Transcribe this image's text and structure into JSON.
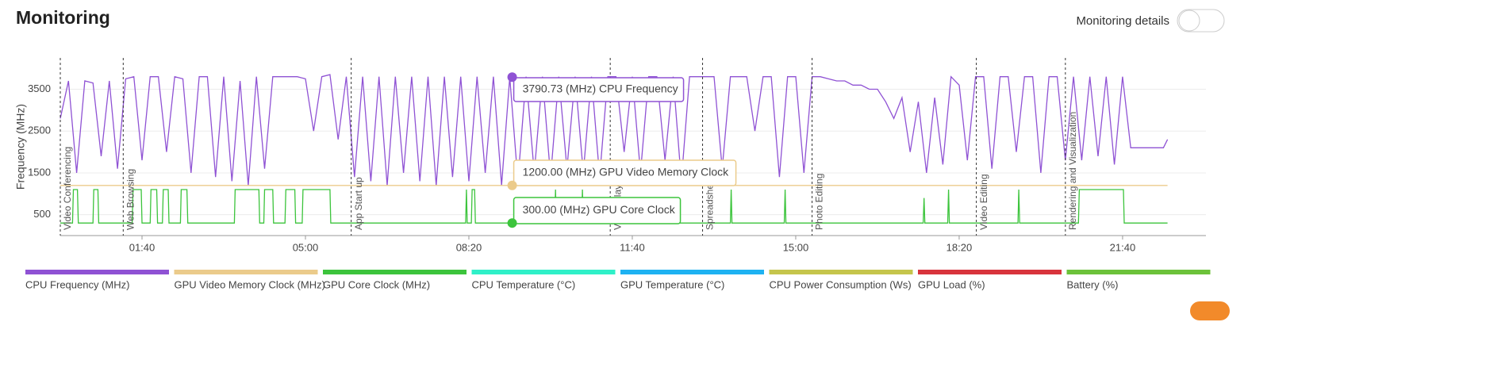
{
  "header": {
    "title": "Monitoring",
    "toggle_label": "Monitoring details"
  },
  "chart_data": {
    "type": "line",
    "y_label": "Frequency (MHz)",
    "xlim": [
      0,
      1402
    ],
    "ylim": [
      0,
      4250
    ],
    "xticks": [
      {
        "value": 100,
        "label": "01:40"
      },
      {
        "value": 300,
        "label": "05:00"
      },
      {
        "value": 500,
        "label": "08:20"
      },
      {
        "value": 700,
        "label": "11:40"
      },
      {
        "value": 900,
        "label": "15:00"
      },
      {
        "value": 1100,
        "label": "18:20"
      },
      {
        "value": 1300,
        "label": "21:40"
      }
    ],
    "yticks": [
      500,
      1500,
      2500,
      3500
    ],
    "grid": true,
    "series": [
      {
        "name": "CPU Frequency (MHz)",
        "color": "#8f52d4",
        "x": [
          0,
          10,
          20,
          30,
          40,
          50,
          60,
          70,
          80,
          90,
          100,
          110,
          120,
          130,
          140,
          150,
          160,
          170,
          180,
          190,
          200,
          210,
          220,
          230,
          240,
          250,
          260,
          270,
          280,
          290,
          300,
          310,
          320,
          330,
          340,
          350,
          360,
          370,
          380,
          390,
          400,
          410,
          420,
          430,
          440,
          450,
          460,
          470,
          480,
          490,
          500,
          510,
          520,
          530,
          540,
          550,
          560,
          570,
          580,
          590,
          600,
          610,
          620,
          630,
          640,
          650,
          660,
          670,
          680,
          690,
          700,
          710,
          720,
          730,
          740,
          750,
          760,
          770,
          780,
          790,
          800,
          810,
          820,
          830,
          840,
          850,
          860,
          870,
          880,
          890,
          900,
          910,
          920,
          930,
          940,
          950,
          960,
          970,
          980,
          990,
          1000,
          1010,
          1020,
          1030,
          1040,
          1050,
          1060,
          1070,
          1080,
          1090,
          1100,
          1110,
          1120,
          1130,
          1140,
          1150,
          1160,
          1170,
          1180,
          1190,
          1200,
          1210,
          1220,
          1230,
          1240,
          1250,
          1260,
          1270,
          1280,
          1290,
          1300,
          1310,
          1320,
          1330,
          1340,
          1350,
          1355
        ],
        "values": [
          2800,
          3700,
          1500,
          3700,
          3650,
          1900,
          3700,
          1600,
          3750,
          3800,
          1800,
          3800,
          3800,
          2000,
          3800,
          3750,
          1500,
          3800,
          3800,
          1400,
          3800,
          1300,
          3700,
          1200,
          3800,
          1600,
          3800,
          3800,
          3800,
          3800,
          3750,
          2500,
          3800,
          3850,
          2300,
          3800,
          1400,
          3800,
          1300,
          3800,
          1200,
          3800,
          1500,
          3800,
          1300,
          3800,
          1200,
          3800,
          1400,
          3800,
          1300,
          3800,
          1500,
          3800,
          1200,
          3790,
          1300,
          3800,
          1500,
          3800,
          1400,
          3800,
          1600,
          3800,
          1500,
          3800,
          1400,
          3800,
          3800,
          2000,
          3800,
          1500,
          3800,
          3800,
          1800,
          3800,
          1300,
          3800,
          3800,
          3800,
          3800,
          1600,
          3800,
          3800,
          3800,
          2500,
          3800,
          3800,
          1400,
          3800,
          3800,
          1500,
          3800,
          3800,
          3750,
          3700,
          3700,
          3600,
          3600,
          3500,
          3500,
          3200,
          2800,
          3300,
          2000,
          3200,
          1500,
          3300,
          1700,
          3800,
          3600,
          1800,
          3800,
          3800,
          1600,
          3800,
          3800,
          2000,
          3800,
          3800,
          1500,
          3800,
          3800,
          1800,
          3800,
          1800,
          3800,
          1900,
          3800,
          1700,
          3800,
          2100,
          2100,
          2100,
          2100,
          2100,
          2300
        ]
      },
      {
        "name": "GPU Video Memory Clock (MHz)",
        "color": "#ebcb8b",
        "x": [
          0,
          1355
        ],
        "values": [
          1200,
          1200
        ]
      },
      {
        "name": "GPU Core Clock (MHz)",
        "color": "#3cc43c",
        "x": [
          0,
          15,
          16,
          21,
          22,
          40,
          41,
          46,
          47,
          88,
          89,
          99,
          100,
          110,
          111,
          118,
          119,
          125,
          126,
          132,
          133,
          147,
          148,
          155,
          156,
          213,
          214,
          243,
          244,
          249,
          250,
          260,
          261,
          275,
          276,
          287,
          288,
          296,
          297,
          330,
          331,
          496,
          497,
          498,
          503,
          504,
          507,
          508,
          605,
          606,
          607,
          638,
          639,
          640,
          820,
          821,
          822,
          886,
          887,
          888,
          1056,
          1057,
          1058,
          1086,
          1087,
          1088,
          1172,
          1173,
          1174,
          1246,
          1247,
          1301,
          1302,
          1355
        ],
        "values": [
          300,
          300,
          1100,
          1100,
          300,
          300,
          1100,
          1100,
          300,
          300,
          1100,
          1100,
          300,
          300,
          1100,
          1100,
          300,
          300,
          1100,
          1100,
          300,
          300,
          1100,
          1100,
          300,
          300,
          1100,
          1100,
          300,
          300,
          1100,
          1100,
          300,
          300,
          1100,
          1100,
          300,
          300,
          1100,
          1100,
          300,
          300,
          1100,
          300,
          300,
          1100,
          1100,
          300,
          300,
          1100,
          300,
          300,
          1100,
          300,
          300,
          1100,
          300,
          300,
          1100,
          300,
          300,
          900,
          300,
          300,
          1100,
          300,
          300,
          1100,
          300,
          300,
          1100,
          1100,
          300,
          300
        ]
      }
    ],
    "inactive_series": [
      {
        "name": "CPU Temperature (°C)",
        "color": "#2ff0c8"
      },
      {
        "name": "GPU Temperature (°C)",
        "color": "#1eb2f2"
      },
      {
        "name": "CPU Power Consumption (Ws)",
        "color": "#c5c54c"
      },
      {
        "name": "GPU Load (%)",
        "color": "#d8343c"
      },
      {
        "name": "Battery (%)",
        "color": "#6cc23a"
      }
    ],
    "annotations": [
      {
        "x": 0,
        "label": "Video Conferencing"
      },
      {
        "x": 77,
        "label": "Web Browsing"
      },
      {
        "x": 356,
        "label": "App Start up"
      },
      {
        "x": 673,
        "label": "Video Playback"
      },
      {
        "x": 786,
        "label": "Spreadsheet"
      },
      {
        "x": 920,
        "label": "Photo Editing"
      },
      {
        "x": 1121,
        "label": "Video Editing"
      },
      {
        "x": 1230,
        "label": "Rendering and Visualization"
      }
    ],
    "hover": {
      "x": 553,
      "items": [
        {
          "value": 3790.73,
          "label": "3790.73 (MHz) CPU Frequency",
          "color": "#8f52d4"
        },
        {
          "value": 1200,
          "label": "1200.00 (MHz) GPU Video Memory Clock",
          "color": "#ebcb8b"
        },
        {
          "value": 300,
          "label": "300.00 (MHz) GPU Core Clock",
          "color": "#3cc43c"
        }
      ]
    }
  }
}
